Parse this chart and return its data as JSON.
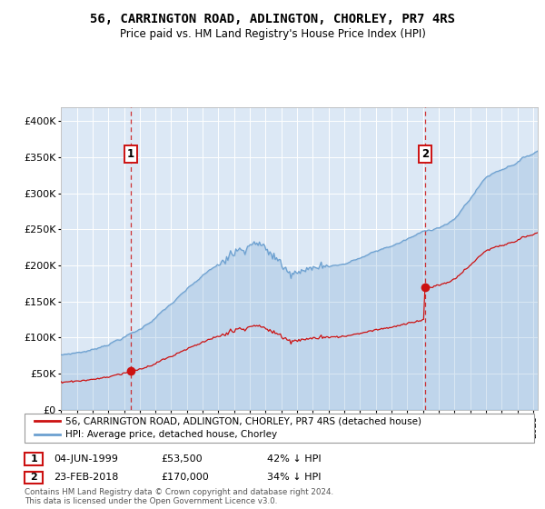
{
  "title": "56, CARRINGTON ROAD, ADLINGTON, CHORLEY, PR7 4RS",
  "subtitle": "Price paid vs. HM Land Registry's House Price Index (HPI)",
  "legend_line1": "56, CARRINGTON ROAD, ADLINGTON, CHORLEY, PR7 4RS (detached house)",
  "legend_line2": "HPI: Average price, detached house, Chorley",
  "annotation1_date": "04-JUN-1999",
  "annotation1_price": "£53,500",
  "annotation1_hpi": "42% ↓ HPI",
  "annotation2_date": "23-FEB-2018",
  "annotation2_price": "£170,000",
  "annotation2_hpi": "34% ↓ HPI",
  "footer": "Contains HM Land Registry data © Crown copyright and database right 2024.\nThis data is licensed under the Open Government Licence v3.0.",
  "bg_color": "#dce8f5",
  "hpi_line_color": "#6ca0d0",
  "price_line_color": "#cc1111",
  "grid_color": "#ffffff",
  "annotation_box_color": "#cc1111",
  "vline_color": "#cc1111",
  "sale1_year": 1999.43,
  "sale1_price": 53500,
  "sale2_year": 2018.14,
  "sale2_price": 170000,
  "ylim_max": 420000,
  "xmin": 1995.0,
  "xmax": 2025.3
}
